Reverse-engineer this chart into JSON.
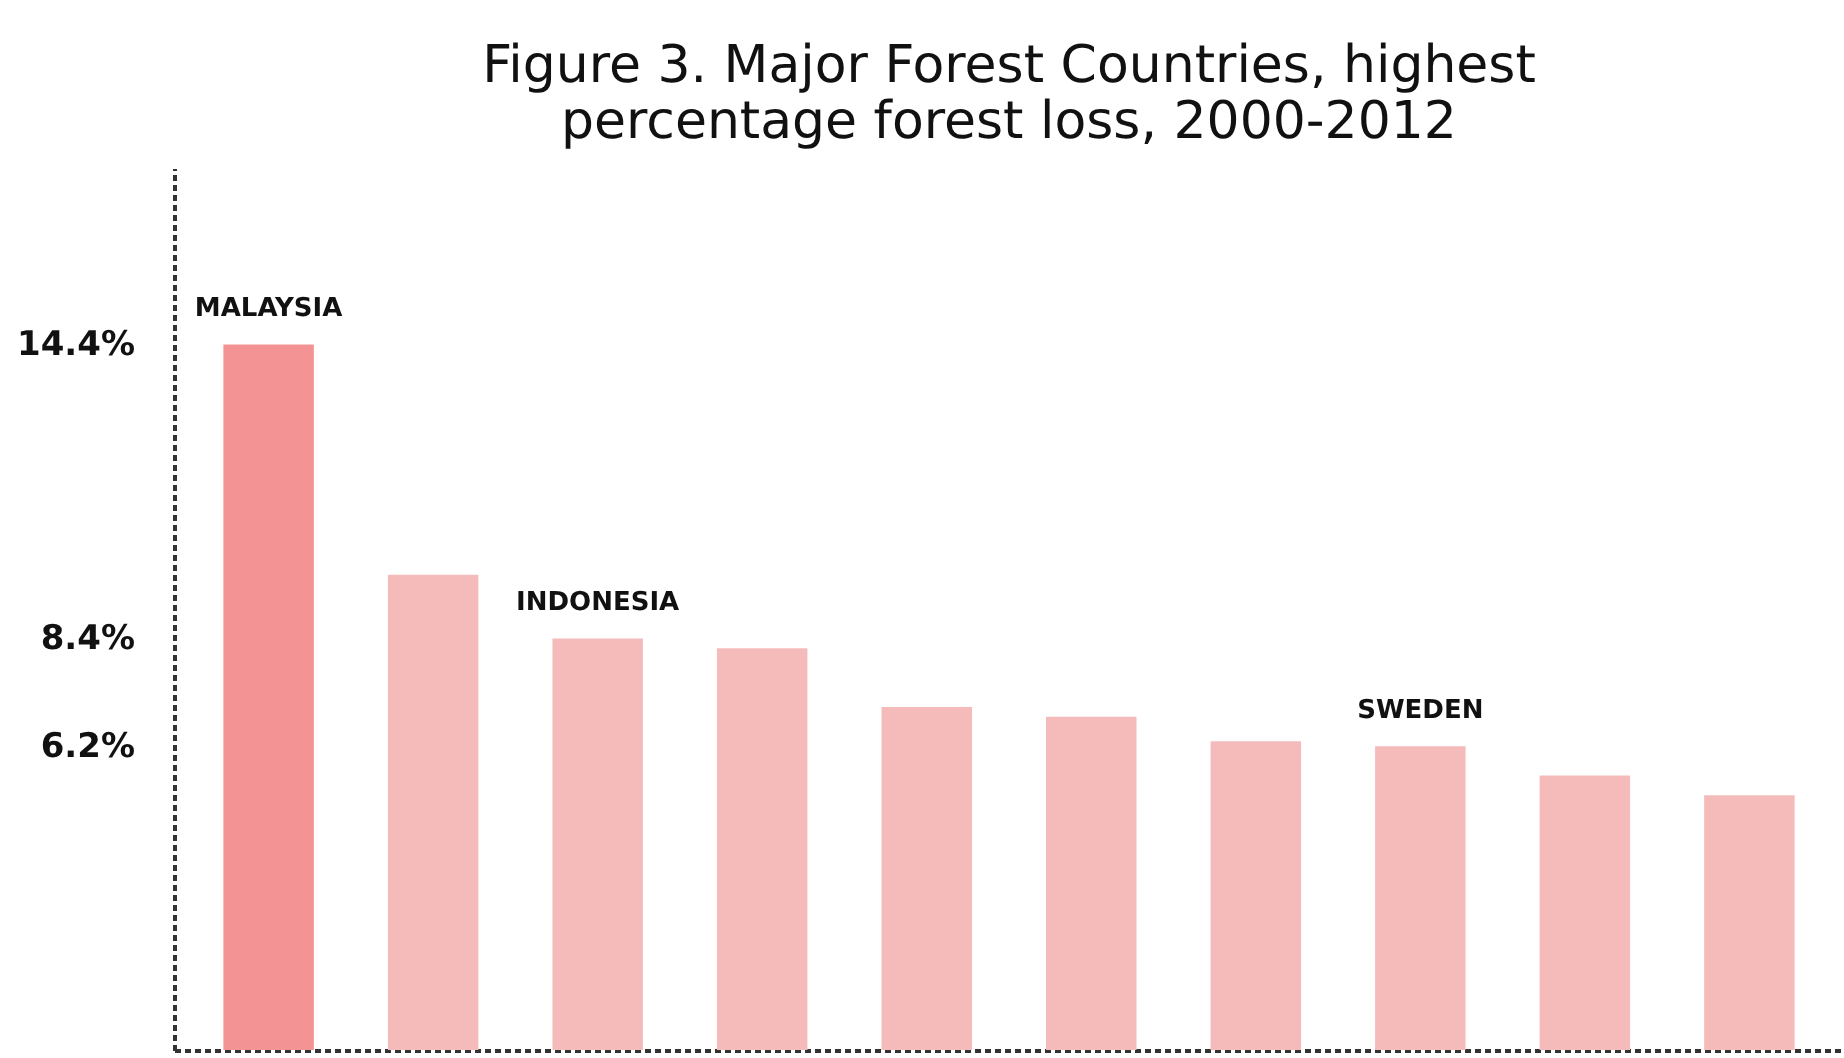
{
  "chart_data": {
    "type": "bar",
    "title": [
      "Figure 3. Major Forest Countries, highest",
      "percentage forest loss, 2000-2012"
    ],
    "categories": [
      "MALAYSIA",
      null,
      "INDONESIA",
      null,
      null,
      null,
      null,
      "SWEDEN",
      null,
      null
    ],
    "values": [
      14.4,
      9.7,
      8.4,
      8.2,
      7.0,
      6.8,
      6.3,
      6.2,
      5.6,
      5.2
    ],
    "colors": [
      "#f49393",
      "#f5bbbb",
      "#f5bbbb",
      "#f5bbbb",
      "#f5bbbb",
      "#f5bbbb",
      "#f5bbbb",
      "#f5bbbb",
      "#f5bbbb",
      "#f5bbbb"
    ],
    "ylim": [
      0,
      18
    ],
    "yticks": [
      {
        "value": 14.4,
        "label": "14.4%"
      },
      {
        "value": 8.4,
        "label": "8.4%"
      },
      {
        "value": 6.2,
        "label": "6.2%"
      }
    ],
    "grid": false
  }
}
